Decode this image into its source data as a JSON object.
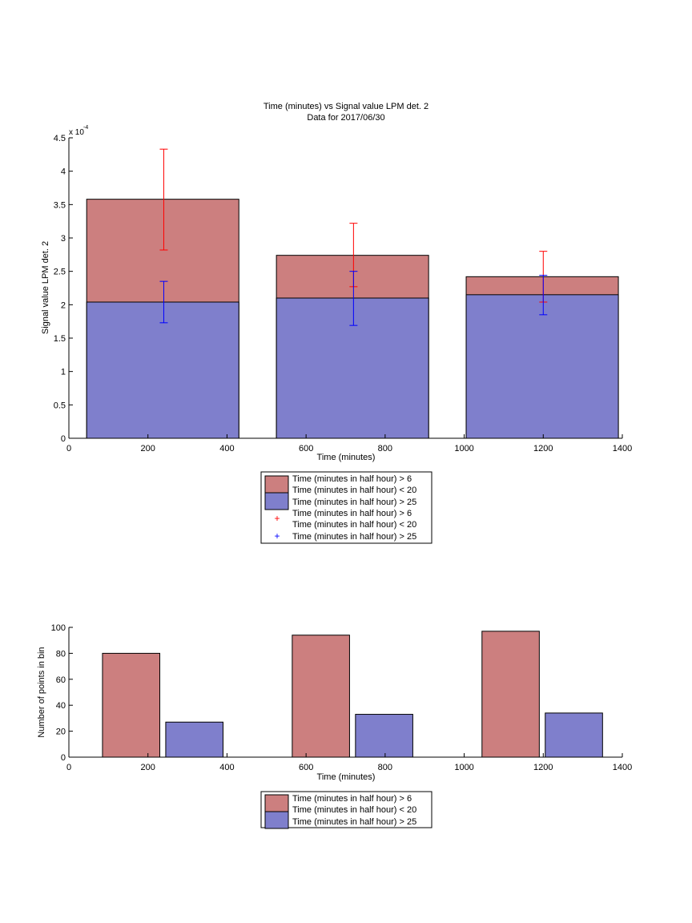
{
  "colors": {
    "red_fill": "#cc7f7f",
    "blue_fill": "#7f7fcc",
    "red_err": "#ff0000",
    "blue_err": "#0000ff"
  },
  "chart_data": [
    {
      "type": "bar",
      "title": "Time (minutes) vs Signal value LPM det. 2",
      "subtitle": "Data for 2017/06/30",
      "xlabel": "Time (minutes)",
      "ylabel": "Signal value LPM det. 2",
      "exponent_base": "x 10",
      "exponent_power": "-4",
      "xlim": [
        0,
        1400
      ],
      "ylim": [
        0,
        4.5
      ],
      "y_scale": 0.0001,
      "xticks": [
        "0",
        "200",
        "400",
        "600",
        "800",
        "1000",
        "1200",
        "1400"
      ],
      "yticks": [
        "0",
        "0.5",
        "1",
        "1.5",
        "2",
        "2.5",
        "3",
        "3.5",
        "4",
        "4.5"
      ],
      "grid": false,
      "legend_position": "below",
      "bins": [
        {
          "x_start": 45,
          "x_end": 430,
          "center": 240
        },
        {
          "x_start": 525,
          "x_end": 910,
          "center": 720
        },
        {
          "x_start": 1005,
          "x_end": 1390,
          "center": 1200
        }
      ],
      "series": [
        {
          "name": "Time (minutes in half hour) > 6",
          "name_line2": "Time (minutes in half hour) < 20",
          "style": "bar",
          "color": "#cc7f7f",
          "values": [
            3.58,
            2.74,
            2.42
          ]
        },
        {
          "name": "Time (minutes in half hour) > 25",
          "style": "bar",
          "color": "#7f7fcc",
          "values": [
            2.04,
            2.1,
            2.15
          ]
        }
      ],
      "error_bars": [
        {
          "name": "Time (minutes in half hour) > 6",
          "name_line2": "Time (minutes in half hour) < 20",
          "color": "#ff0000",
          "x": [
            240,
            720,
            1200
          ],
          "center": [
            3.58,
            2.74,
            2.42
          ],
          "low": [
            2.82,
            2.27,
            2.04
          ],
          "high": [
            4.33,
            3.22,
            2.8
          ]
        },
        {
          "name": "Time (minutes in half hour) > 25",
          "color": "#0000ff",
          "x": [
            240,
            720,
            1200
          ],
          "center": [
            2.04,
            2.1,
            2.15
          ],
          "low": [
            1.73,
            1.69,
            1.85
          ],
          "high": [
            2.35,
            2.5,
            2.44
          ]
        }
      ]
    },
    {
      "type": "bar",
      "xlabel": "Time (minutes)",
      "ylabel": "Number of points in bin",
      "xlim": [
        0,
        1400
      ],
      "ylim": [
        0,
        100
      ],
      "xticks": [
        "0",
        "200",
        "400",
        "600",
        "800",
        "1000",
        "1200",
        "1400"
      ],
      "yticks": [
        "0",
        "20",
        "40",
        "60",
        "80",
        "100"
      ],
      "grid": false,
      "legend_position": "below",
      "series": [
        {
          "name": "Time (minutes in half hour) > 6",
          "name_line2": "Time (minutes in half hour) < 20",
          "color": "#cc7f7f",
          "bars": [
            {
              "x_start": 85,
              "x_end": 230,
              "value": 80
            },
            {
              "x_start": 565,
              "x_end": 710,
              "value": 94
            },
            {
              "x_start": 1045,
              "x_end": 1190,
              "value": 97
            }
          ]
        },
        {
          "name": "Time (minutes in half hour) > 25",
          "color": "#7f7fcc",
          "bars": [
            {
              "x_start": 245,
              "x_end": 390,
              "value": 27
            },
            {
              "x_start": 725,
              "x_end": 870,
              "value": 33
            },
            {
              "x_start": 1205,
              "x_end": 1350,
              "value": 34
            }
          ]
        }
      ]
    }
  ]
}
